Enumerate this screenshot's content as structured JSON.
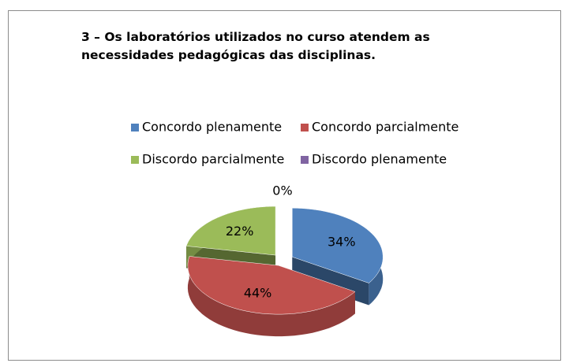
{
  "chart_data": {
    "type": "pie3d",
    "title": "3 – Os laboratórios utilizados no curso atendem as necessidades pedagógicas das disciplinas.",
    "categories": [
      "Concordo plenamente",
      "Concordo parcialmente",
      "Discordo parcialmente",
      "Discordo plenamente"
    ],
    "values": [
      34,
      44,
      22,
      0
    ],
    "value_labels": [
      "34%",
      "44%",
      "22%",
      "0%"
    ],
    "colors": [
      "#4f81bd",
      "#c0504d",
      "#9bbb59",
      "#8064a2"
    ],
    "legend": "top"
  }
}
